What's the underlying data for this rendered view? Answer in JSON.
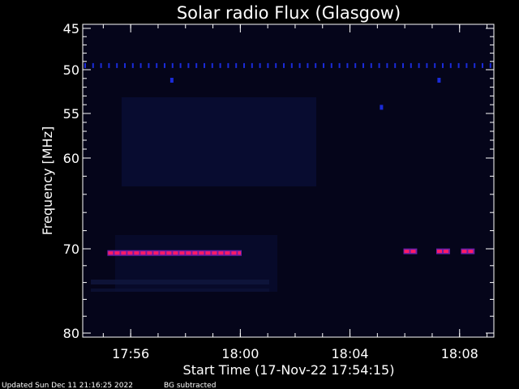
{
  "chart_data": {
    "type": "heatmap",
    "title": "Solar radio Flux (Glasgow)",
    "xlabel": "Start Time (17-Nov-22 17:54:15)",
    "ylabel": "Frequency [MHz]",
    "x_tick_labels": [
      "17:56",
      "18:00",
      "18:04",
      "18:08"
    ],
    "x_tick_minutes": [
      1.75,
      5.75,
      9.75,
      13.75
    ],
    "xlim_minutes": [
      0,
      15
    ],
    "y_tick_labels": [
      "45",
      "50",
      "55",
      "60",
      "70",
      "80"
    ],
    "y_tick_values": [
      45,
      50,
      55,
      60,
      70,
      80
    ],
    "ylim": [
      45,
      80
    ],
    "y_scale": "log-like",
    "colors": {
      "background": "#000000",
      "plot_background": "#05051a",
      "haze": "#0a0f3a",
      "dot_band": "#1a2bd8",
      "burst_core": "#ff1a66",
      "burst_edge": "#6a1ea8",
      "text": "#ffffff"
    },
    "dotted_band_mhz": 49.5,
    "bright_points": [
      {
        "t": 3.25,
        "f": 51.2
      },
      {
        "t": 13.0,
        "f": 51.2
      },
      {
        "t": 10.9,
        "f": 54.3
      }
    ],
    "interference_bands": [
      {
        "f": 70.5,
        "t_start": 0.9,
        "t_end": 5.8
      },
      {
        "f": 70.3,
        "t_start": 11.7,
        "t_end": 12.2
      },
      {
        "f": 70.3,
        "t_start": 12.9,
        "t_end": 13.4
      },
      {
        "f": 70.3,
        "t_start": 13.8,
        "t_end": 14.3
      }
    ]
  },
  "footer": {
    "updated": "Updated Sun Dec 11 21:16:25 2022",
    "mode": "BG subtracted"
  }
}
